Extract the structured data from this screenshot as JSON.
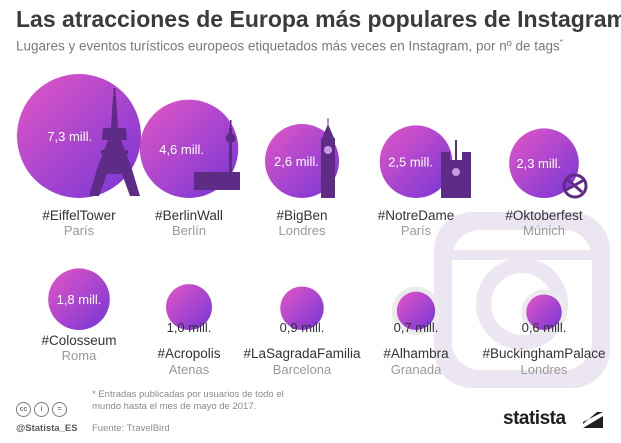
{
  "header": {
    "title": "Las atracciones de Europa más populares de Instagram",
    "subtitle": "Lugares y eventos turísticos europeos etiquetados más veces en Instagram, por nº de tags",
    "subtitle_mark": "*"
  },
  "chart_data": {
    "type": "bubble",
    "unit": "mill.",
    "title": "Las atracciones de Europa más populares de Instagram",
    "items": [
      {
        "tag": "#EiffelTower",
        "city": "París",
        "value": 7.3,
        "label": "7,3 mill.",
        "icon": "eiffel-tower-icon"
      },
      {
        "tag": "#BerlinWall",
        "city": "Berlín",
        "value": 4.6,
        "label": "4,6 mill.",
        "icon": "berlin-wall-icon"
      },
      {
        "tag": "#BigBen",
        "city": "Londres",
        "value": 2.6,
        "label": "2,6 mill.",
        "icon": "big-ben-icon"
      },
      {
        "tag": "#NotreDame",
        "city": "París",
        "value": 2.5,
        "label": "2,5 mill.",
        "icon": "notre-dame-icon"
      },
      {
        "tag": "#Oktoberfest",
        "city": "Múnich",
        "value": 2.3,
        "label": "2,3 mill.",
        "icon": "pretzel-icon"
      },
      {
        "tag": "#Colosseum",
        "city": "Roma",
        "value": 1.8,
        "label": "1,8 mill."
      },
      {
        "tag": "#Acropolis",
        "city": "Atenas",
        "value": 1.0,
        "label": "1,0 mill."
      },
      {
        "tag": "#LaSagradaFamilia",
        "city": "Barcelona",
        "value": 0.9,
        "label": "0,9 mill."
      },
      {
        "tag": "#Alhambra",
        "city": "Granada",
        "value": 0.7,
        "label": "0,7 mill."
      },
      {
        "tag": "#BuckinghamPalace",
        "city": "Londres",
        "value": 0.6,
        "label": "0,6 mill."
      }
    ],
    "colors": {
      "gradient_start": "#d94fc6",
      "gradient_end": "#7a3ad0",
      "icon": "#5e2b86"
    }
  },
  "footer": {
    "footnote": "* Entradas publicadas por usuarios de todo el mundo hasta el mes de mayo de 2017.",
    "source": "Fuente: TravelBird",
    "handle": "@Statista_ES",
    "brand": "statista",
    "cc_icons": [
      "cc",
      "i",
      "="
    ]
  }
}
